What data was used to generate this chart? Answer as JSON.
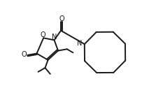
{
  "bg_color": "#ffffff",
  "line_color": "#1a1a1a",
  "line_width": 1.4,
  "figsize": [
    2.13,
    1.56
  ],
  "dpi": 100,
  "xlim": [
    0,
    10
  ],
  "ylim": [
    0,
    7.4
  ]
}
